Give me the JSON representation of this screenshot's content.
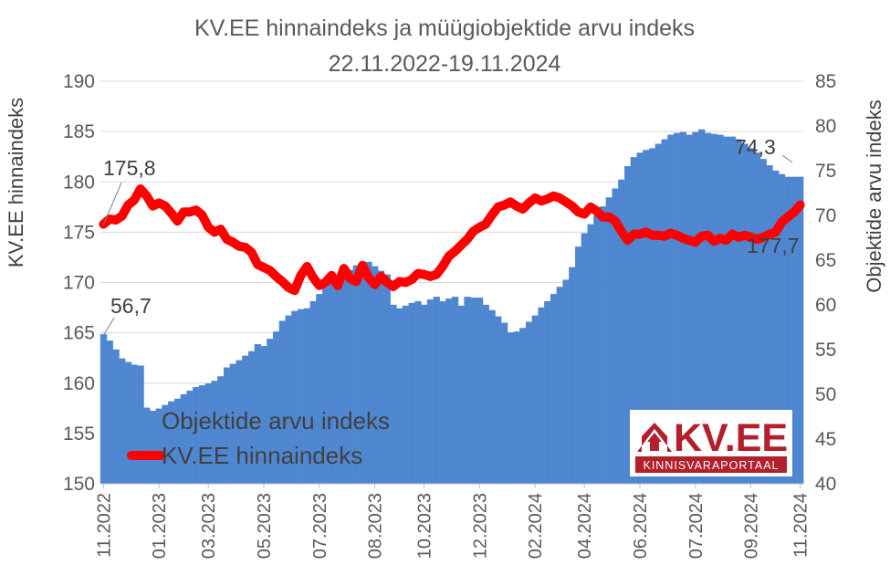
{
  "chart_data": {
    "type": "bar+line",
    "title": "KV.EE hinnaindeks ja müügiobjektide arvu indeks",
    "subtitle": "22.11.2022-19.11.2024",
    "y_left_label": "KV.EE hinnaindeks",
    "y_right_label": "Objektide arvu indeks",
    "y_left_lim": [
      150,
      190
    ],
    "y_right_lim": [
      40,
      85
    ],
    "y_left_ticks": [
      "150",
      "155",
      "160",
      "165",
      "170",
      "175",
      "180",
      "185",
      "190"
    ],
    "y_right_ticks": [
      "40",
      "45",
      "50",
      "55",
      "60",
      "65",
      "70",
      "75",
      "80",
      "85"
    ],
    "x_ticks": [
      "11.2022",
      "01.2023",
      "03.2023",
      "05.2023",
      "07.2023",
      "08.2023",
      "10.2023",
      "12.2023",
      "02.2024",
      "04.2024",
      "06.2024",
      "07.2024",
      "09.2024",
      "11.2024"
    ],
    "x_tick_positions": [
      0,
      9,
      17,
      26,
      35,
      44,
      52,
      61,
      70,
      78,
      87,
      96,
      105,
      113
    ],
    "legend": {
      "position": "bottom-left",
      "bars": "Objektide arvu indeks",
      "line": "KV.EE hinnaindeks"
    },
    "annotations": {
      "first_price": "175,8",
      "first_count": "56,7",
      "last_count": "74,3",
      "last_price": "177,7"
    },
    "colors": {
      "bars": "#4f86d0",
      "line": "#ff0000",
      "text": "#595959",
      "grid": "#d9d9d9"
    },
    "series": [
      {
        "name": "Objektide arvu indeks",
        "axis": "right",
        "kind": "bar",
        "values": [
          56.7,
          56.0,
          55.0,
          54.0,
          53.6,
          53.3,
          53.2,
          48.5,
          48.0,
          48.4,
          48.8,
          49.2,
          49.5,
          50.0,
          50.4,
          50.8,
          51.0,
          51.2,
          51.5,
          52.0,
          53.0,
          53.4,
          53.8,
          54.3,
          54.8,
          55.6,
          55.4,
          56.2,
          57.0,
          58.2,
          58.8,
          59.3,
          59.5,
          59.6,
          60.4,
          61.2,
          62.0,
          62.8,
          63.1,
          63.5,
          63.9,
          64.4,
          64.7,
          64.8,
          64.3,
          63.8,
          63.4,
          60.0,
          59.6,
          59.9,
          60.2,
          60.4,
          60.0,
          60.6,
          60.9,
          60.4,
          60.7,
          60.9,
          59.9,
          60.9,
          60.8,
          60.8,
          60.0,
          59.4,
          58.7,
          58.0,
          56.9,
          57.0,
          57.4,
          58.1,
          58.8,
          59.7,
          60.4,
          61.2,
          62.0,
          62.8,
          64.2,
          66.5,
          68.0,
          69.0,
          70.0,
          71.0,
          72.0,
          73.0,
          74.0,
          75.5,
          76.5,
          77.0,
          77.3,
          77.5,
          78.0,
          78.5,
          79.0,
          79.2,
          79.3,
          79.0,
          79.3,
          79.6,
          79.2,
          79.1,
          79.0,
          78.8,
          78.8,
          78.5,
          78.0,
          77.5,
          77.0,
          76.3,
          75.6,
          75.0,
          74.6,
          74.3,
          74.3,
          74.3
        ]
      },
      {
        "name": "KV.EE hinnaindeks",
        "axis": "left",
        "kind": "line",
        "values": [
          175.8,
          176.3,
          176.2,
          176.6,
          177.7,
          178.2,
          179.3,
          178.6,
          177.6,
          177.9,
          177.6,
          176.9,
          176.1,
          177.0,
          177.0,
          177.2,
          176.7,
          175.5,
          175.0,
          175.3,
          174.3,
          174.0,
          173.6,
          173.5,
          173.0,
          171.8,
          171.5,
          171.2,
          170.6,
          170.1,
          169.5,
          169.2,
          170.7,
          171.6,
          170.5,
          169.7,
          170.0,
          170.7,
          169.7,
          171.4,
          170.4,
          170.1,
          171.7,
          170.5,
          169.8,
          170.6,
          170.0,
          169.6,
          170.1,
          170.0,
          170.3,
          170.9,
          170.8,
          170.6,
          170.8,
          171.6,
          172.6,
          173.1,
          173.7,
          174.3,
          175.1,
          175.5,
          175.8,
          176.7,
          177.5,
          177.7,
          178.0,
          177.6,
          177.3,
          177.9,
          178.4,
          178.1,
          178.3,
          178.6,
          178.4,
          178.0,
          177.6,
          177.0,
          176.8,
          177.5,
          177.1,
          176.5,
          176.5,
          176.1,
          175.1,
          174.2,
          174.8,
          174.8,
          175.0,
          174.7,
          174.7,
          174.6,
          174.9,
          174.7,
          174.4,
          174.2,
          174.0,
          174.6,
          174.7,
          174.1,
          174.4,
          174.2,
          174.8,
          174.5,
          174.7,
          174.5,
          174.3,
          174.5,
          174.8,
          175.0,
          176.0,
          176.5,
          177.0,
          177.7
        ]
      }
    ]
  },
  "logo": {
    "brand_text": "KV.EE",
    "tagline": "KINNISVARAPORTAAL",
    "colors": {
      "brand": "#b31f2b",
      "tagline_bg": "#b31f2b",
      "tagline_text": "#ffffff"
    }
  }
}
